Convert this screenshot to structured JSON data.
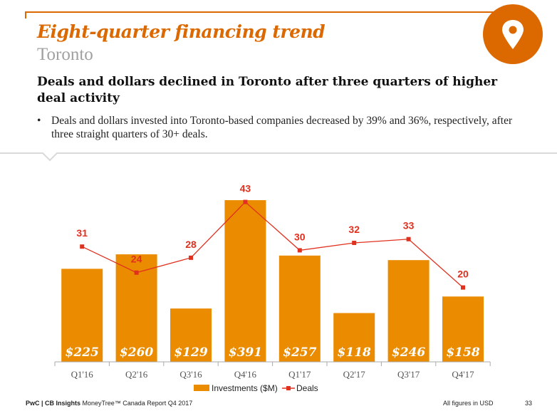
{
  "header": {
    "title": "Eight-quarter financing trend",
    "subtitle": "Toronto",
    "icon": "map-pin-icon",
    "accent_color": "#dc6900"
  },
  "headline": "Deals and dollars declined in Toronto after three quarters of higher deal activity",
  "bullets": [
    "Deals and dollars invested into Toronto-based companies decreased by 39% and 36%, respectively, after three straight quarters of 30+ deals."
  ],
  "footer": {
    "source_bold": "PwC | CB Insights",
    "source_rest": " MoneyTree™ Canada Report Q4 2017",
    "note": "All figures in USD",
    "page": "33"
  },
  "chart_data": {
    "type": "bar",
    "categories": [
      "Q1'16",
      "Q2'16",
      "Q3'16",
      "Q4'16",
      "Q1'17",
      "Q2'17",
      "Q3'17",
      "Q4'17"
    ],
    "series": [
      {
        "name": "Investments ($M)",
        "type": "bar",
        "color": "#eb8c00",
        "values": [
          225,
          260,
          129,
          391,
          257,
          118,
          246,
          158
        ],
        "labels": [
          "$225",
          "$260",
          "$129",
          "$391",
          "$257",
          "$118",
          "$246",
          "$158"
        ]
      },
      {
        "name": "Deals",
        "type": "line",
        "color": "#e0301e",
        "values": [
          31,
          24,
          28,
          43,
          30,
          32,
          33,
          20
        ]
      }
    ],
    "legend": "bottom",
    "grid": false
  }
}
